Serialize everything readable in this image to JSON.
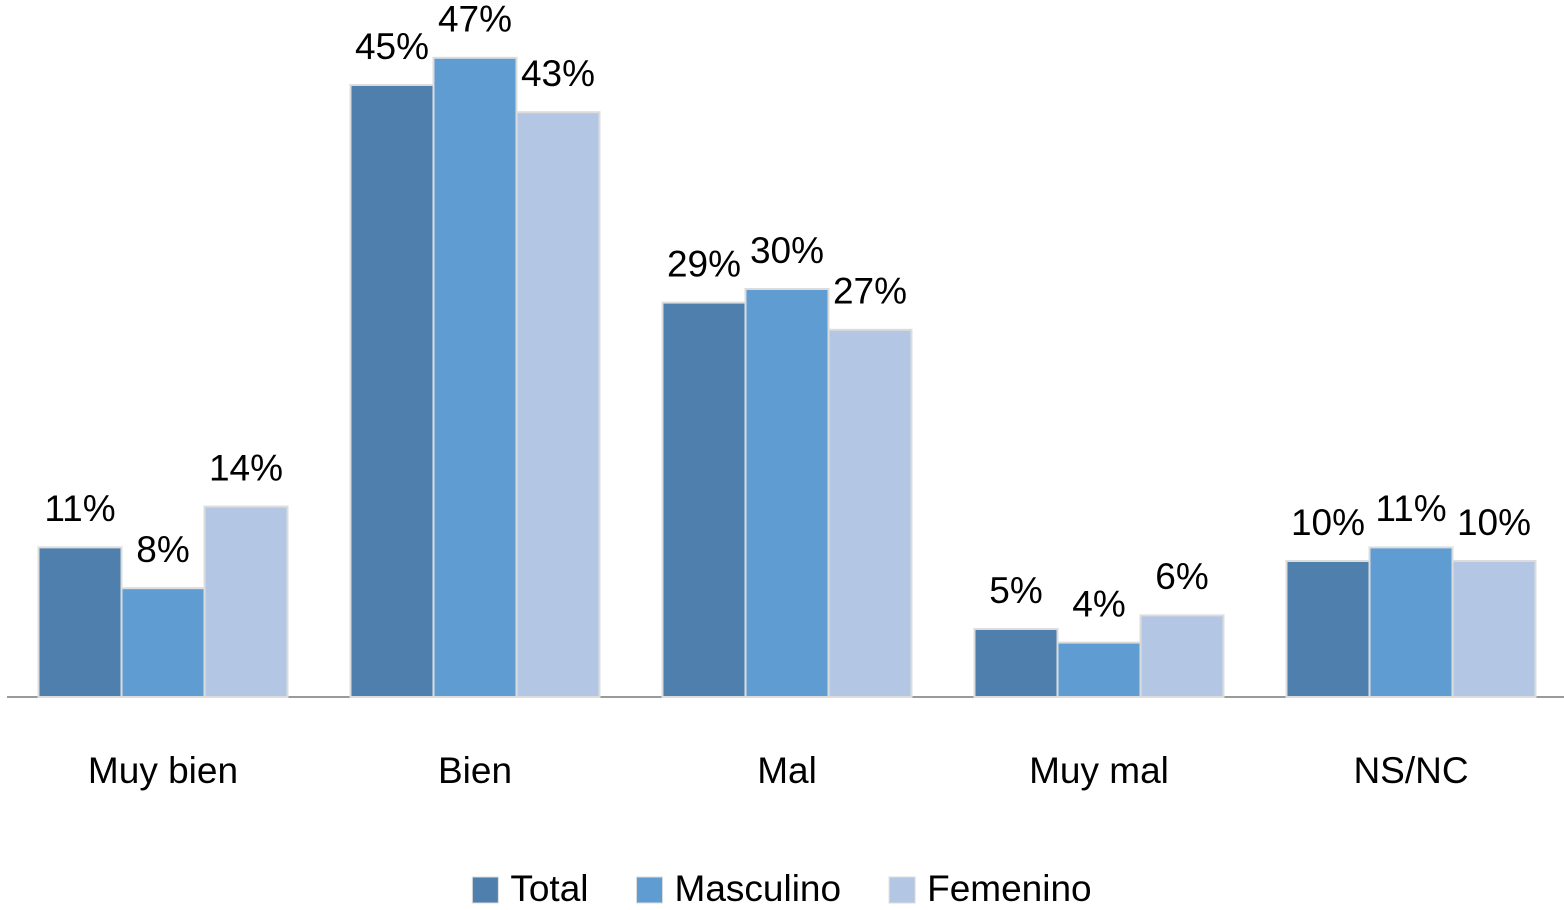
{
  "chart_data": {
    "type": "bar",
    "categories": [
      "Muy bien",
      "Bien",
      "Mal",
      "Muy mal",
      "NS/NC"
    ],
    "series": [
      {
        "name": "Total",
        "color": "#4f80ad",
        "values": [
          11,
          45,
          29,
          5,
          10
        ],
        "value_labels": [
          "11%",
          "45%",
          "29%",
          "5%",
          "10%"
        ]
      },
      {
        "name": "Masculino",
        "color": "#5f9cd2",
        "values": [
          8,
          47,
          30,
          4,
          11
        ],
        "value_labels": [
          "8%",
          "47%",
          "30%",
          "4%",
          "11%"
        ]
      },
      {
        "name": "Femenino",
        "color": "#b3c7e4",
        "values": [
          14,
          43,
          27,
          6,
          10
        ],
        "value_labels": [
          "14%",
          "43%",
          "27%",
          "6%",
          "10%"
        ]
      }
    ],
    "ylim": [
      0,
      50
    ]
  }
}
